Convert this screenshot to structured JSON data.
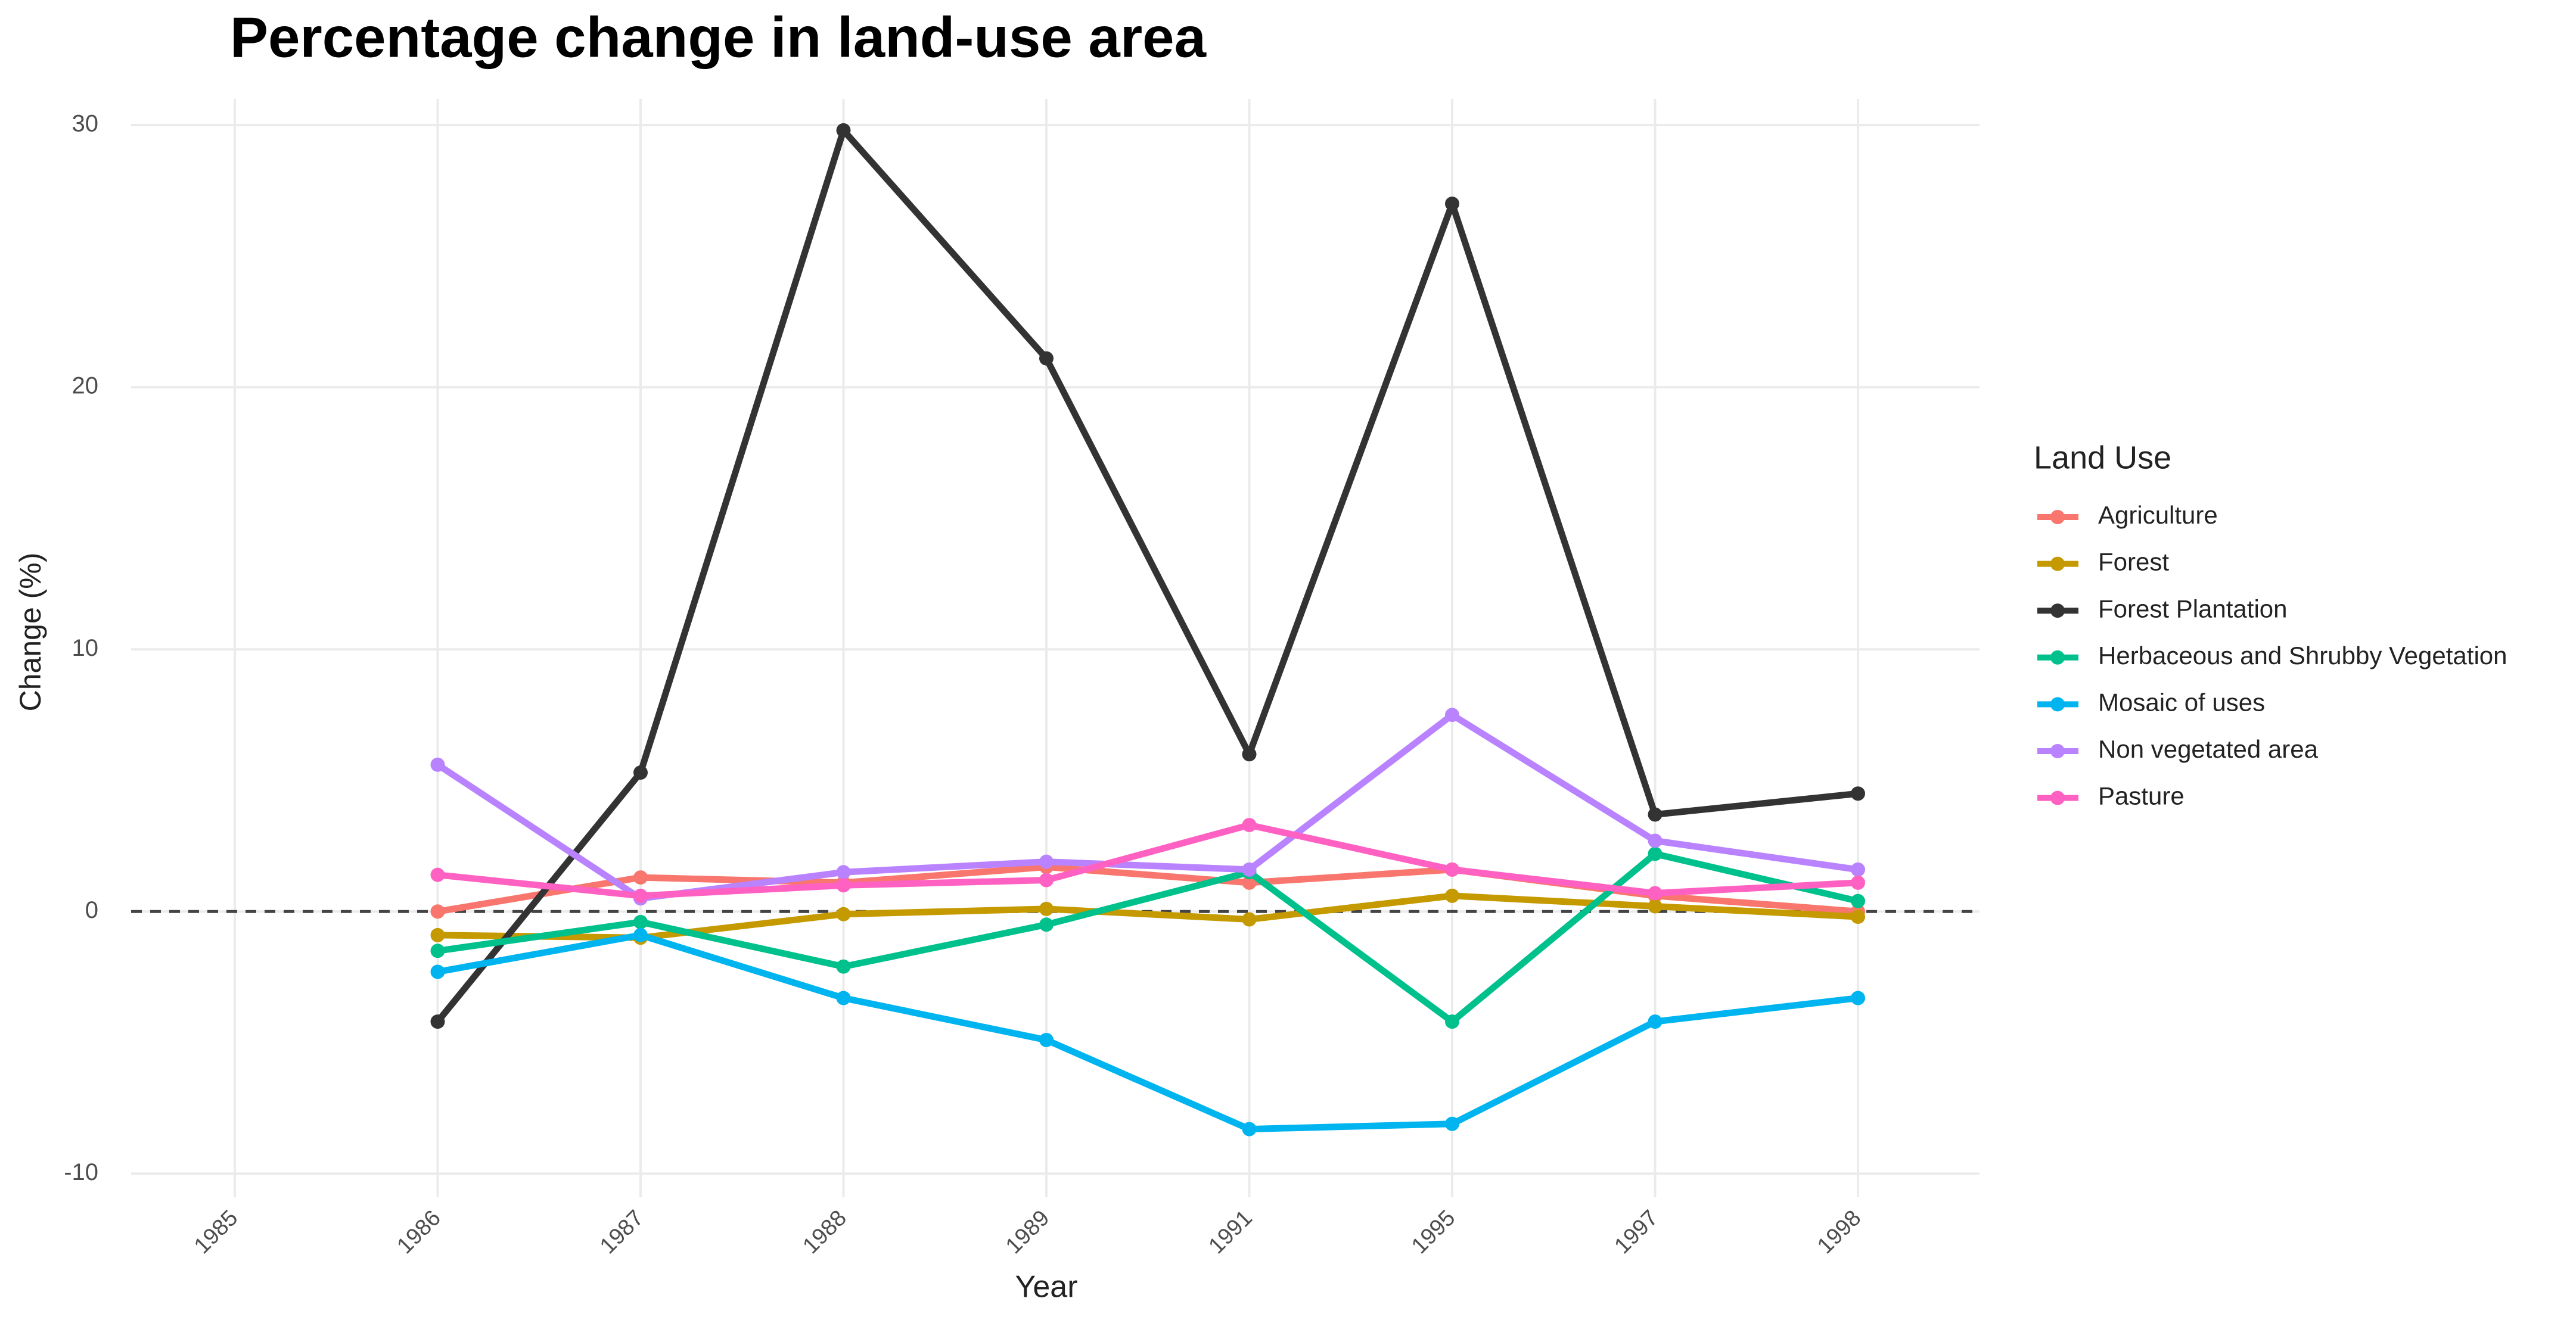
{
  "chart_data": {
    "type": "line",
    "title": "Percentage change in land-use area",
    "x_label": "Year",
    "y_label": "Change (%)",
    "legend_title": "Land Use",
    "legend_position": "right",
    "grid": true,
    "hline": 0,
    "categories": [
      "1985",
      "1986",
      "1987",
      "1988",
      "1989",
      "1991",
      "1995",
      "1997",
      "1998"
    ],
    "ylim": [
      -10.9,
      31
    ],
    "yticks": [
      -10,
      0,
      10,
      20,
      30
    ],
    "series": [
      {
        "name": "Agriculture",
        "color": "#F8766D",
        "values": [
          null,
          0.0,
          1.3,
          1.1,
          1.7,
          1.1,
          1.6,
          0.6,
          0.0
        ]
      },
      {
        "name": "Forest",
        "color": "#C49A00",
        "values": [
          null,
          -0.9,
          -1.0,
          -0.1,
          0.1,
          -0.3,
          0.6,
          0.2,
          -0.2
        ]
      },
      {
        "name": "Forest Plantation",
        "color": "#333333",
        "values": [
          null,
          -4.2,
          5.3,
          29.8,
          21.1,
          6.0,
          27.0,
          3.7,
          4.5
        ]
      },
      {
        "name": "Herbaceous and Shrubby Vegetation",
        "color": "#00C08B",
        "values": [
          null,
          -1.5,
          -0.4,
          -2.1,
          -0.5,
          1.5,
          -4.2,
          2.2,
          0.4
        ]
      },
      {
        "name": "Mosaic of uses",
        "color": "#00B4EF",
        "values": [
          null,
          -2.3,
          -0.9,
          -3.3,
          -4.9,
          -8.3,
          -8.1,
          -4.2,
          -3.3
        ]
      },
      {
        "name": "Non vegetated area",
        "color": "#B983FF",
        "values": [
          null,
          5.6,
          0.5,
          1.5,
          1.9,
          1.6,
          7.5,
          2.7,
          1.6
        ]
      },
      {
        "name": "Pasture",
        "color": "#FF61C3",
        "values": [
          null,
          1.4,
          0.6,
          1.0,
          1.2,
          3.3,
          1.6,
          0.7,
          1.1
        ]
      }
    ]
  }
}
